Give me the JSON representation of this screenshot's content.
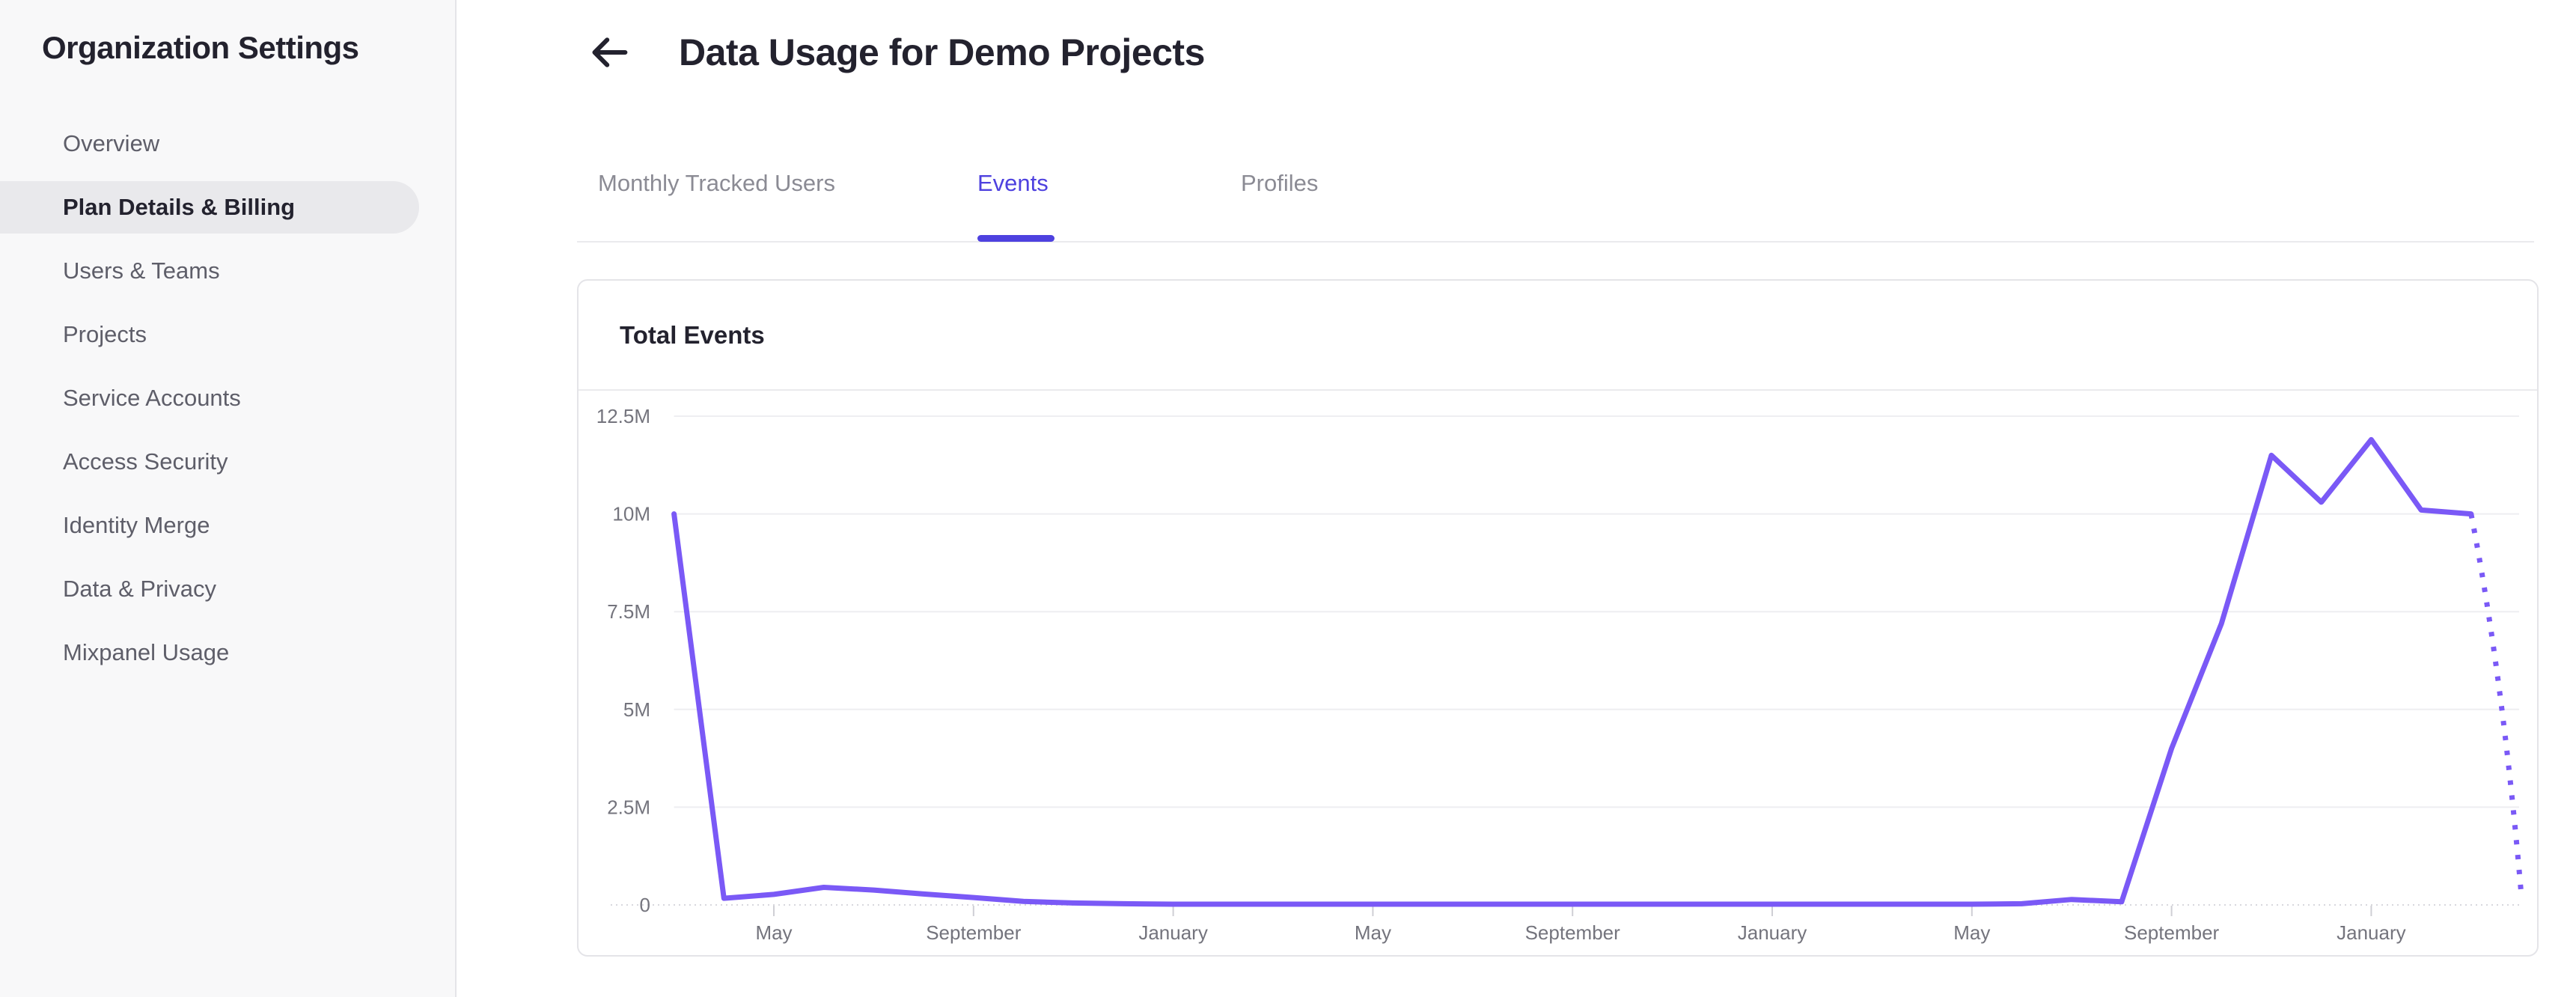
{
  "sidebar": {
    "title": "Organization Settings",
    "items": [
      {
        "label": "Overview",
        "selected": false
      },
      {
        "label": "Plan Details & Billing",
        "selected": true
      },
      {
        "label": "Users & Teams",
        "selected": false
      },
      {
        "label": "Projects",
        "selected": false
      },
      {
        "label": "Service Accounts",
        "selected": false
      },
      {
        "label": "Access Security",
        "selected": false
      },
      {
        "label": "Identity Merge",
        "selected": false
      },
      {
        "label": "Data & Privacy",
        "selected": false
      },
      {
        "label": "Mixpanel Usage",
        "selected": false
      }
    ]
  },
  "header": {
    "title": "Data Usage for Demo Projects",
    "back_icon": "left-arrow-icon"
  },
  "tabs": [
    {
      "label": "Monthly Tracked Users",
      "active": false
    },
    {
      "label": "Events",
      "active": true
    },
    {
      "label": "Profiles",
      "active": false
    }
  ],
  "card": {
    "title": "Total Events"
  },
  "chart_data": {
    "type": "line",
    "title": "Total Events",
    "series_name": "Total Events",
    "unit": "events",
    "ylim_millions": [
      0,
      12.5
    ],
    "y_tick_labels": [
      "12.5M",
      "10M",
      "7.5M",
      "5M",
      "2.5M",
      "0"
    ],
    "y_tick_values_millions": [
      12.5,
      10,
      7.5,
      5,
      2.5,
      0
    ],
    "x_ticks": [
      {
        "index": 2,
        "label": "May"
      },
      {
        "index": 6,
        "label": "September"
      },
      {
        "index": 10,
        "label": "January"
      },
      {
        "index": 14,
        "label": "May"
      },
      {
        "index": 18,
        "label": "September"
      },
      {
        "index": 22,
        "label": "January"
      },
      {
        "index": 26,
        "label": "May"
      },
      {
        "index": 30,
        "label": "September"
      },
      {
        "index": 34,
        "label": "January"
      }
    ],
    "points_are_monthly": true,
    "values_millions": [
      10,
      0.17,
      0.27,
      0.45,
      0.38,
      0.28,
      0.19,
      0.09,
      0.05,
      0.03,
      0.02,
      0.02,
      0.02,
      0.02,
      0.02,
      0.02,
      0.02,
      0.02,
      0.02,
      0.02,
      0.02,
      0.02,
      0.02,
      0.02,
      0.02,
      0.02,
      0.02,
      0.03,
      0.14,
      0.08,
      4.0,
      7.2,
      11.5,
      10.3,
      11.9,
      10.1,
      10.0,
      0.35
    ],
    "dotted_last_segment": true,
    "grid": "horizontal",
    "legend": "none",
    "line_color": "#7a59f6"
  },
  "theme": {
    "line": "#7a59f6",
    "tab_active": "#4e41df",
    "text_dark": "#23222e",
    "text_gray": "#5e5e69",
    "text_light": "#8b8b94",
    "axis_label": "#74747d",
    "sidebar_bg": "#f8f8f9",
    "pill": "#e9e9ec",
    "border": "#e4e4e8",
    "tab_border": "#eaeaed",
    "grid": "#eeeef1",
    "baseline": "#d8d8dd",
    "tick": "#cfcfd5"
  }
}
